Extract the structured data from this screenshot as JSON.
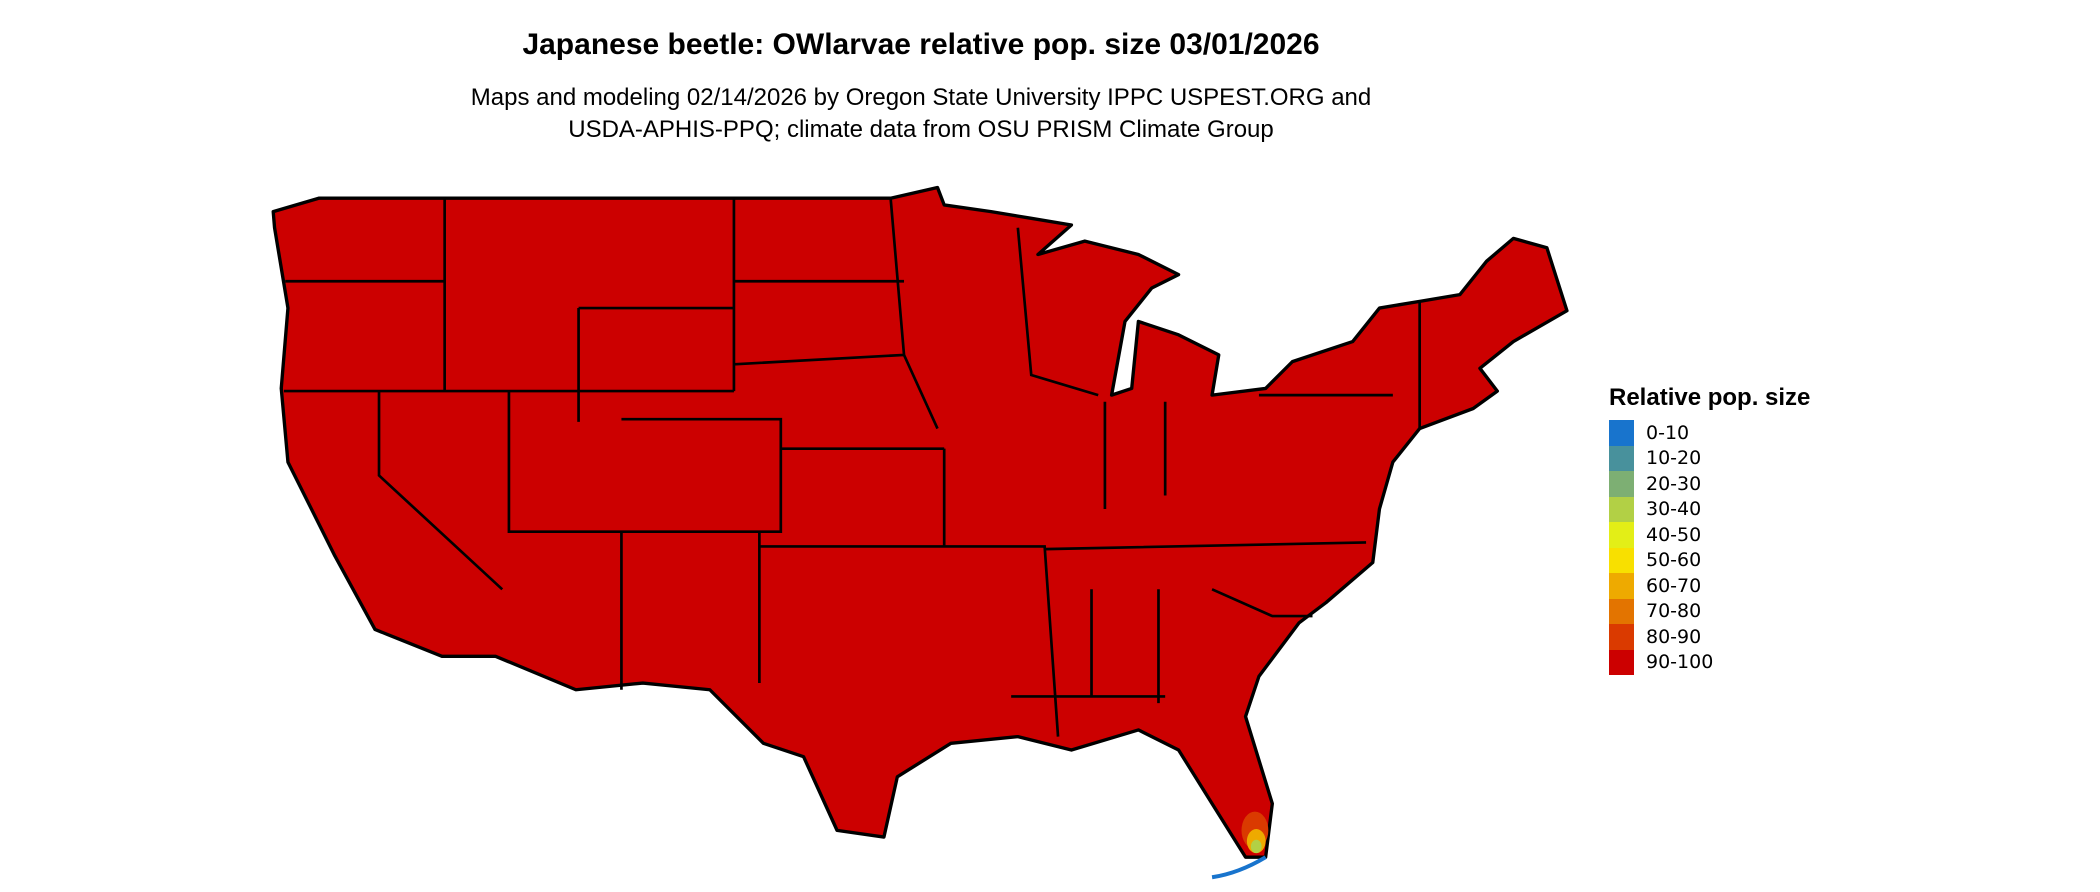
{
  "title": "Japanese beetle: OWlarvae relative pop. size 03/01/2026",
  "subtitle_line1": "Maps and modeling 02/14/2026 by Oregon State University IPPC USPEST.ORG and",
  "subtitle_line2": "USDA-APHIS-PPQ; climate data from OSU PRISM Climate Group",
  "map": {
    "region": "Contiguous United States",
    "dominant_class": "90-100",
    "dominant_color": "#CC0000",
    "border_color": "#000000"
  },
  "legend": {
    "title": "Relative pop. size",
    "placement": "right",
    "items": [
      {
        "label": "0-10",
        "color": "#1874CD"
      },
      {
        "label": "10-20",
        "color": "#48919C"
      },
      {
        "label": "20-30",
        "color": "#7DAF73"
      },
      {
        "label": "30-40",
        "color": "#B2D045"
      },
      {
        "label": "40-50",
        "color": "#E3EE17"
      },
      {
        "label": "50-60",
        "color": "#F8E000"
      },
      {
        "label": "60-70",
        "color": "#EEAA00"
      },
      {
        "label": "70-80",
        "color": "#E37400"
      },
      {
        "label": "80-90",
        "color": "#DA3A00"
      },
      {
        "label": "90-100",
        "color": "#CC0000"
      }
    ]
  }
}
